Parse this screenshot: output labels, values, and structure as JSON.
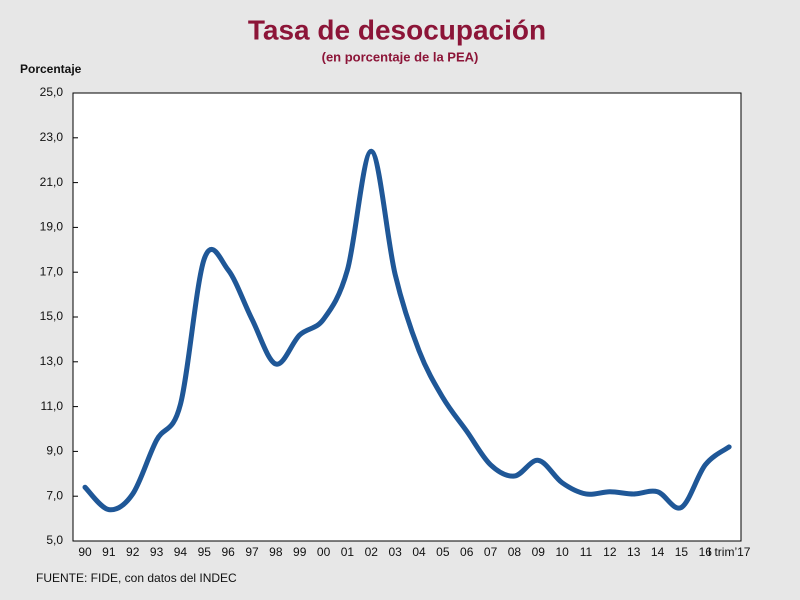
{
  "chart_data": {
    "type": "line",
    "title": "Tasa de desocupación",
    "subtitle": "(en porcentaje de la PEA)",
    "y_label": "Porcentaje",
    "source": "FUENTE: FIDE, con datos del INDEC",
    "categories": [
      "90",
      "91",
      "92",
      "93",
      "94",
      "95",
      "96",
      "97",
      "98",
      "99",
      "00",
      "01",
      "02",
      "03",
      "04",
      "05",
      "06",
      "07",
      "08",
      "09",
      "10",
      "11",
      "12",
      "13",
      "14",
      "15",
      "16",
      "I trim’17"
    ],
    "series": [
      {
        "name": "Tasa de desocupación",
        "color": "#1f5797",
        "values": [
          7.4,
          6.4,
          7.1,
          9.5,
          11.1,
          17.6,
          17.1,
          14.9,
          12.9,
          14.2,
          14.9,
          17.1,
          22.4,
          16.9,
          13.5,
          11.4,
          9.9,
          8.4,
          7.9,
          8.6,
          7.6,
          7.1,
          7.2,
          7.1,
          7.2,
          6.5,
          8.4,
          9.2
        ]
      }
    ],
    "ylim": [
      5,
      25
    ],
    "yticks": [
      {
        "value": 5,
        "label": "5,0"
      },
      {
        "value": 7,
        "label": "7,0"
      },
      {
        "value": 9,
        "label": "9,0"
      },
      {
        "value": 11,
        "label": "11,0"
      },
      {
        "value": 13,
        "label": "13,0"
      },
      {
        "value": 15,
        "label": "15,0"
      },
      {
        "value": 17,
        "label": "17,0"
      },
      {
        "value": 19,
        "label": "19,0"
      },
      {
        "value": 21,
        "label": "21,0"
      },
      {
        "value": 23,
        "label": "23,0"
      },
      {
        "value": 25,
        "label": "25,0"
      }
    ],
    "grid": false
  }
}
